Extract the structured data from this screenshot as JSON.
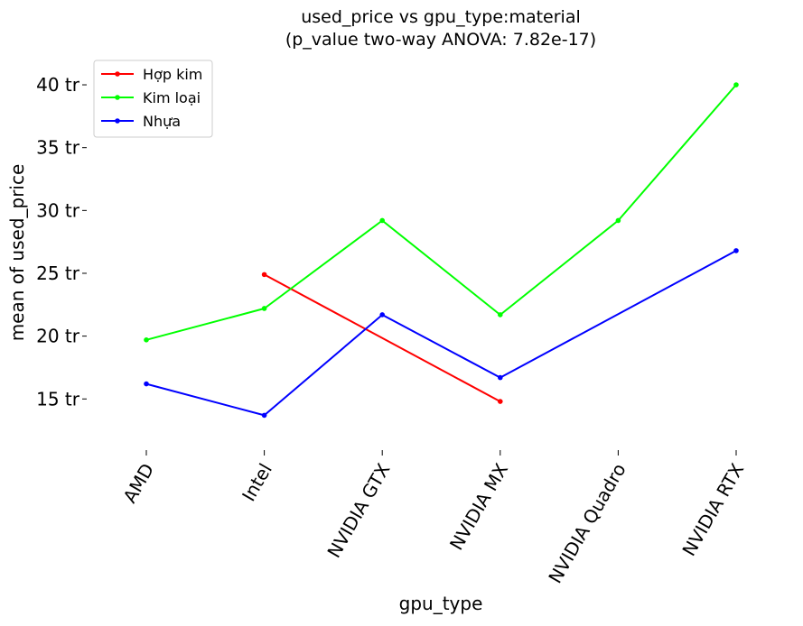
{
  "chart_data": {
    "type": "line",
    "title": "used_price vs gpu_type:material",
    "subtitle": "(p_value two-way ANOVA: 7.82e-17)",
    "xlabel": "gpu_type",
    "ylabel": "mean of used_price",
    "categories": [
      "AMD",
      "Intel",
      "NVIDIA GTX",
      "NVIDIA MX",
      "NVIDIA Quadro",
      "NVIDIA RTX"
    ],
    "ylim": [
      11,
      42.3
    ],
    "y_ticks": [
      15,
      20,
      25,
      30,
      35,
      40
    ],
    "y_tick_suffix": " tr",
    "grid": false,
    "legend_position": "top-left",
    "series": [
      {
        "name": "Hợp kim",
        "color": "#ff0000",
        "values": [
          null,
          24.9,
          null,
          14.8,
          null,
          null
        ]
      },
      {
        "name": "Kim loại",
        "color": "#00ff00",
        "values": [
          19.7,
          22.2,
          29.2,
          21.7,
          29.2,
          40.0
        ]
      },
      {
        "name": "Nhựa",
        "color": "#0000ff",
        "values": [
          16.2,
          13.7,
          21.7,
          16.7,
          null,
          26.8
        ]
      }
    ]
  }
}
